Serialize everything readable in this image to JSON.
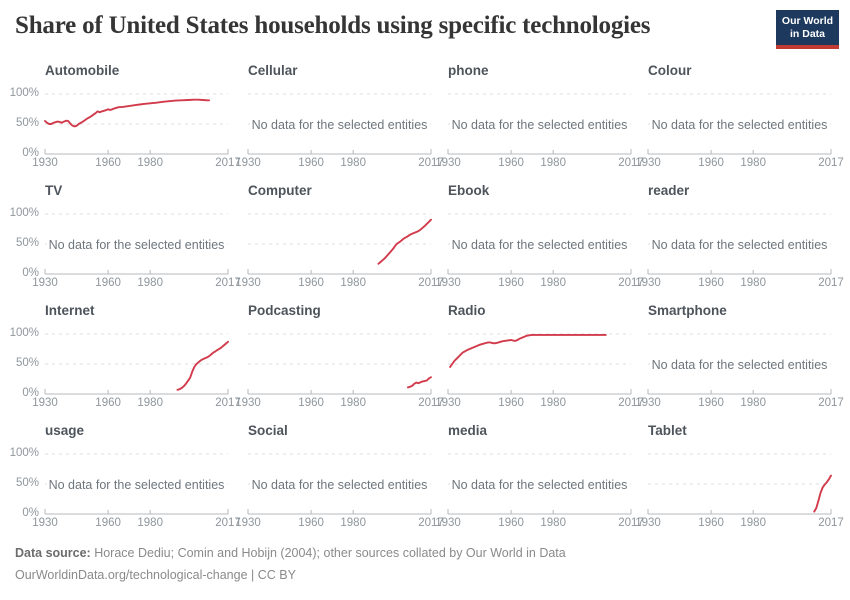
{
  "header": {
    "title": "Share of United States households using specific technologies",
    "logo_line1": "Our World",
    "logo_line2": "in Data"
  },
  "axis": {
    "x_min": 1930,
    "x_max": 2017,
    "x_tick_years": [
      1930,
      1960,
      1980,
      2017
    ],
    "x_tick_labels": [
      "1930",
      "1960",
      "1980",
      "2017"
    ],
    "y_tick_labels": [
      "100%",
      "50%",
      "0%"
    ],
    "no_data_text": "No data for the selected entities"
  },
  "colors": {
    "line": "#d23b4b",
    "grid": "#dcdcdc",
    "axis": "#b4b9bd",
    "tick_label": "#8e969c",
    "panel_title": "#4d545b",
    "no_data_text": "#6e767d",
    "main_title": "#353535",
    "logo_bg": "#1d3a5e",
    "logo_red": "#c23b32",
    "footer_text": "#8a8a8a"
  },
  "chart_data": {
    "type": "line",
    "title": "Share of United States households using specific technologies",
    "unit": "% of households",
    "x_range": [
      1930,
      2017
    ],
    "y_range": [
      0,
      100
    ],
    "grid": "dashed horizontal gridlines at 0%, 50%, 100%",
    "legend_position": "none (faceted small multiples, 4x4 grid)",
    "line_color": "#d23b4b",
    "facets": [
      {
        "title": "Automobile",
        "no_data": false,
        "series": [
          [
            1930,
            55
          ],
          [
            1931,
            52
          ],
          [
            1932,
            50
          ],
          [
            1933,
            50
          ],
          [
            1934,
            52
          ],
          [
            1935,
            53
          ],
          [
            1936,
            54
          ],
          [
            1937,
            53.5
          ],
          [
            1938,
            52
          ],
          [
            1939,
            54
          ],
          [
            1940,
            55.5
          ],
          [
            1941,
            55
          ],
          [
            1942,
            51
          ],
          [
            1943,
            47.5
          ],
          [
            1944,
            46
          ],
          [
            1945,
            47
          ],
          [
            1946,
            50
          ],
          [
            1947,
            52
          ],
          [
            1948,
            54
          ],
          [
            1949,
            56.5
          ],
          [
            1950,
            59
          ],
          [
            1951,
            61
          ],
          [
            1952,
            63
          ],
          [
            1953,
            65.5
          ],
          [
            1954,
            68
          ],
          [
            1955,
            71
          ],
          [
            1956,
            69.5
          ],
          [
            1957,
            71
          ],
          [
            1958,
            72
          ],
          [
            1959,
            73
          ],
          [
            1960,
            74.5
          ],
          [
            1961,
            73.5
          ],
          [
            1962,
            74.5
          ],
          [
            1963,
            76
          ],
          [
            1964,
            77
          ],
          [
            1965,
            78
          ],
          [
            1967,
            78.5
          ],
          [
            1969,
            79.5
          ],
          [
            1971,
            80.5
          ],
          [
            1973,
            81.5
          ],
          [
            1975,
            82.5
          ],
          [
            1977,
            83.5
          ],
          [
            1980,
            84.5
          ],
          [
            1983,
            85.5
          ],
          [
            1986,
            87
          ],
          [
            1989,
            88
          ],
          [
            1992,
            89
          ],
          [
            1995,
            89.5
          ],
          [
            1998,
            90
          ],
          [
            2001,
            90.5
          ],
          [
            2003,
            90.5
          ],
          [
            2005,
            90
          ],
          [
            2007,
            89.5
          ],
          [
            2008,
            89.5
          ]
        ]
      },
      {
        "title": "Cellular",
        "no_data": true,
        "series": []
      },
      {
        "title": "phone",
        "no_data": true,
        "series": []
      },
      {
        "title": "Colour",
        "no_data": true,
        "series": []
      },
      {
        "title": "TV",
        "no_data": true,
        "series": []
      },
      {
        "title": "Computer",
        "no_data": false,
        "series": [
          [
            1992,
            17
          ],
          [
            1993,
            20
          ],
          [
            1994,
            23
          ],
          [
            1995,
            26
          ],
          [
            1996,
            30
          ],
          [
            1997,
            34
          ],
          [
            1998,
            38
          ],
          [
            1999,
            42
          ],
          [
            2000,
            47
          ],
          [
            2001,
            51
          ],
          [
            2002,
            53
          ],
          [
            2003,
            56
          ],
          [
            2004,
            59
          ],
          [
            2005,
            61
          ],
          [
            2006,
            63
          ],
          [
            2007,
            65.5
          ],
          [
            2008,
            67
          ],
          [
            2009,
            68.5
          ],
          [
            2010,
            70
          ],
          [
            2011,
            71.5
          ],
          [
            2012,
            74
          ],
          [
            2013,
            77
          ],
          [
            2014,
            80
          ],
          [
            2015,
            83.5
          ],
          [
            2016,
            87
          ],
          [
            2017,
            90.5
          ]
        ]
      },
      {
        "title": "Ebook",
        "no_data": true,
        "series": []
      },
      {
        "title": "reader",
        "no_data": true,
        "series": []
      },
      {
        "title": "Internet",
        "no_data": false,
        "series": [
          [
            1993,
            7
          ],
          [
            1994,
            8
          ],
          [
            1995,
            10
          ],
          [
            1996,
            13
          ],
          [
            1997,
            17
          ],
          [
            1998,
            22
          ],
          [
            1999,
            27
          ],
          [
            2000,
            37
          ],
          [
            2001,
            45
          ],
          [
            2002,
            50
          ],
          [
            2003,
            53
          ],
          [
            2004,
            56
          ],
          [
            2005,
            58
          ],
          [
            2006,
            59.5
          ],
          [
            2007,
            61
          ],
          [
            2008,
            63
          ],
          [
            2009,
            66
          ],
          [
            2010,
            69
          ],
          [
            2011,
            71
          ],
          [
            2012,
            73.5
          ],
          [
            2013,
            75.5
          ],
          [
            2014,
            78
          ],
          [
            2015,
            81
          ],
          [
            2016,
            84
          ],
          [
            2017,
            87
          ]
        ]
      },
      {
        "title": "Podcasting",
        "no_data": false,
        "series": [
          [
            2006,
            11
          ],
          [
            2007,
            12
          ],
          [
            2008,
            13.5
          ],
          [
            2009,
            17
          ],
          [
            2010,
            19
          ],
          [
            2011,
            18
          ],
          [
            2012,
            19.5
          ],
          [
            2013,
            21
          ],
          [
            2014,
            21.5
          ],
          [
            2015,
            22.5
          ],
          [
            2016,
            26
          ],
          [
            2017,
            28
          ]
        ]
      },
      {
        "title": "Radio",
        "no_data": false,
        "series": [
          [
            1931,
            45
          ],
          [
            1932,
            50
          ],
          [
            1933,
            55
          ],
          [
            1934,
            58.5
          ],
          [
            1935,
            62
          ],
          [
            1936,
            65.5
          ],
          [
            1937,
            69
          ],
          [
            1938,
            71
          ],
          [
            1939,
            73
          ],
          [
            1940,
            74.5
          ],
          [
            1941,
            76
          ],
          [
            1942,
            77.5
          ],
          [
            1943,
            79
          ],
          [
            1944,
            80.5
          ],
          [
            1945,
            82
          ],
          [
            1946,
            83
          ],
          [
            1947,
            84
          ],
          [
            1948,
            85
          ],
          [
            1949,
            86
          ],
          [
            1950,
            86
          ],
          [
            1951,
            85
          ],
          [
            1952,
            84.5
          ],
          [
            1953,
            85
          ],
          [
            1954,
            86
          ],
          [
            1955,
            87
          ],
          [
            1956,
            88
          ],
          [
            1957,
            88.5
          ],
          [
            1958,
            89
          ],
          [
            1959,
            89.5
          ],
          [
            1960,
            90
          ],
          [
            1961,
            89
          ],
          [
            1962,
            88.5
          ],
          [
            1963,
            90
          ],
          [
            1964,
            92
          ],
          [
            1965,
            93.5
          ],
          [
            1966,
            95
          ],
          [
            1967,
            96.5
          ],
          [
            1968,
            97.5
          ],
          [
            1969,
            98
          ],
          [
            1970,
            98.5
          ],
          [
            1975,
            98.5
          ],
          [
            1980,
            98.5
          ],
          [
            1985,
            98.5
          ],
          [
            1990,
            98.5
          ],
          [
            1995,
            98.5
          ],
          [
            2000,
            98.5
          ],
          [
            2005,
            98.5
          ]
        ]
      },
      {
        "title": "Smartphone",
        "no_data": true,
        "series": []
      },
      {
        "title": "usage",
        "no_data": true,
        "series": []
      },
      {
        "title": "Social",
        "no_data": true,
        "series": []
      },
      {
        "title": "media",
        "no_data": true,
        "series": []
      },
      {
        "title": "Tablet",
        "no_data": false,
        "series": [
          [
            2009,
            4
          ],
          [
            2010,
            10
          ],
          [
            2011,
            22
          ],
          [
            2012,
            35
          ],
          [
            2013,
            44
          ],
          [
            2014,
            49
          ],
          [
            2015,
            53
          ],
          [
            2016,
            58
          ],
          [
            2017,
            64
          ]
        ]
      }
    ]
  },
  "footer": {
    "source_label": "Data source:",
    "source_text": " Horace Dediu; Comin and Hobijn (2004); other sources collated by Our World in Data",
    "link_line": "OurWorldinData.org/technological-change | CC BY"
  }
}
